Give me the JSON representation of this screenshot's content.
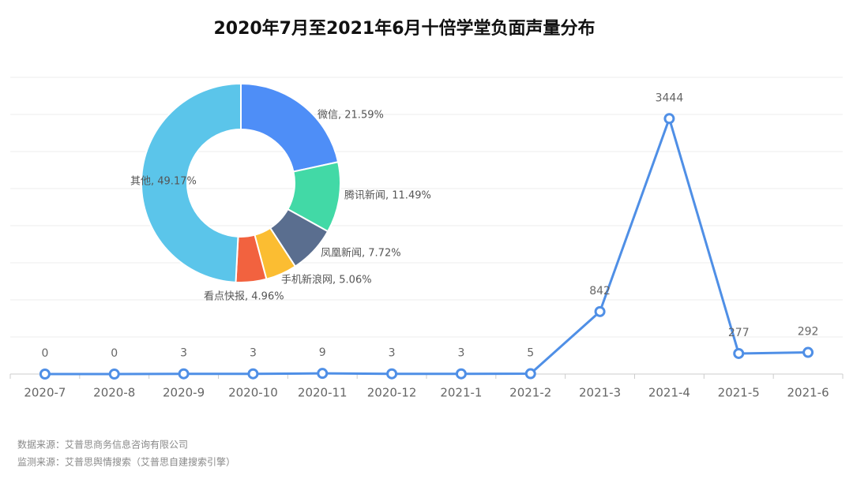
{
  "chart_data": [
    {
      "type": "line",
      "title": "2020年7月至2021年6月十倍学堂负面声量分布",
      "categories": [
        "2020-7",
        "2020-8",
        "2020-9",
        "2020-10",
        "2020-11",
        "2020-12",
        "2021-1",
        "2021-2",
        "2021-3",
        "2021-4",
        "2021-5",
        "2021-6"
      ],
      "values": [
        0,
        0,
        3,
        3,
        9,
        3,
        3,
        5,
        842,
        3444,
        277,
        292
      ],
      "color": "#4f8fe6",
      "ylim": [
        0,
        4000
      ],
      "yticks": [
        0,
        500,
        1000,
        1500,
        2000,
        2500,
        3000,
        3500,
        4000
      ],
      "grid": true
    },
    {
      "type": "pie",
      "values": [
        21.59,
        11.49,
        7.72,
        5.06,
        4.96,
        49.17
      ],
      "value_labels": [
        "微信, 21.59%",
        "腾讯新闻, 11.49%",
        "凤凰新闻, 7.72%",
        "手机新浪网, 5.06%",
        "看点快报, 4.96%",
        "其他, 49.17%"
      ],
      "colors": [
        "#4e8ef7",
        "#42d9a6",
        "#5a6e8f",
        "#fbbd32",
        "#f2623f",
        "#5bc5ea"
      ]
    }
  ],
  "notes": [
    "数据来源：艾普思商务信息咨询有限公司",
    "监测来源：艾普思舆情搜索（艾普思自建搜索引擎）"
  ]
}
